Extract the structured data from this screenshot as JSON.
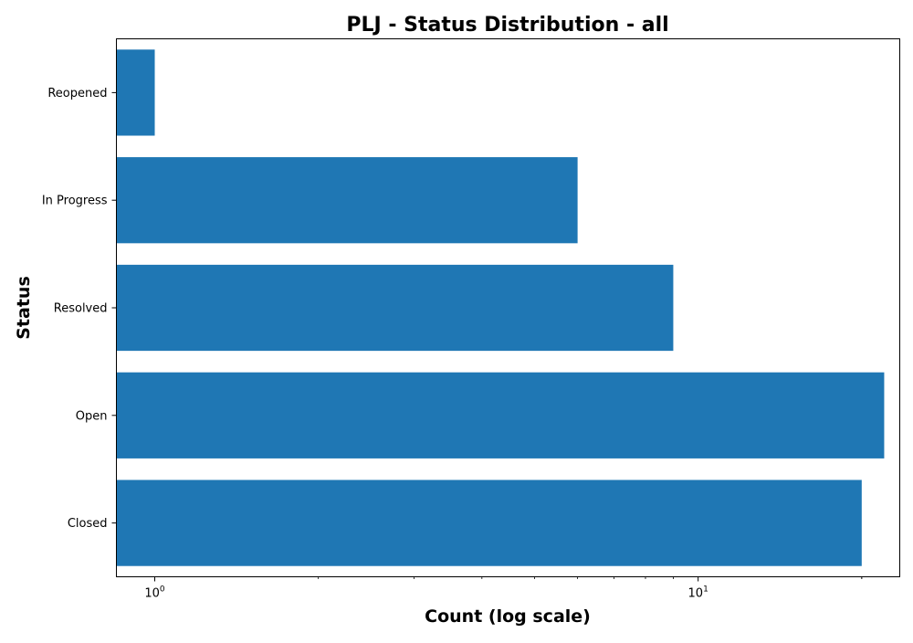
{
  "chart_data": {
    "type": "bar",
    "orientation": "horizontal",
    "title": "PLJ - Status Distribution - all",
    "xlabel": "Count (log scale)",
    "ylabel": "Status",
    "x_scale": "log",
    "xlim": [
      0.85,
      23.5
    ],
    "x_major_ticks": [
      {
        "value": 1,
        "base": "10",
        "exponent": "0"
      },
      {
        "value": 10,
        "base": "10",
        "exponent": "1"
      }
    ],
    "categories": [
      "Closed",
      "Open",
      "Resolved",
      "In Progress",
      "Reopened"
    ],
    "values": [
      20,
      22,
      9,
      6,
      1
    ],
    "bar_color": "#1f77b4",
    "grid": false,
    "legend": "none"
  }
}
